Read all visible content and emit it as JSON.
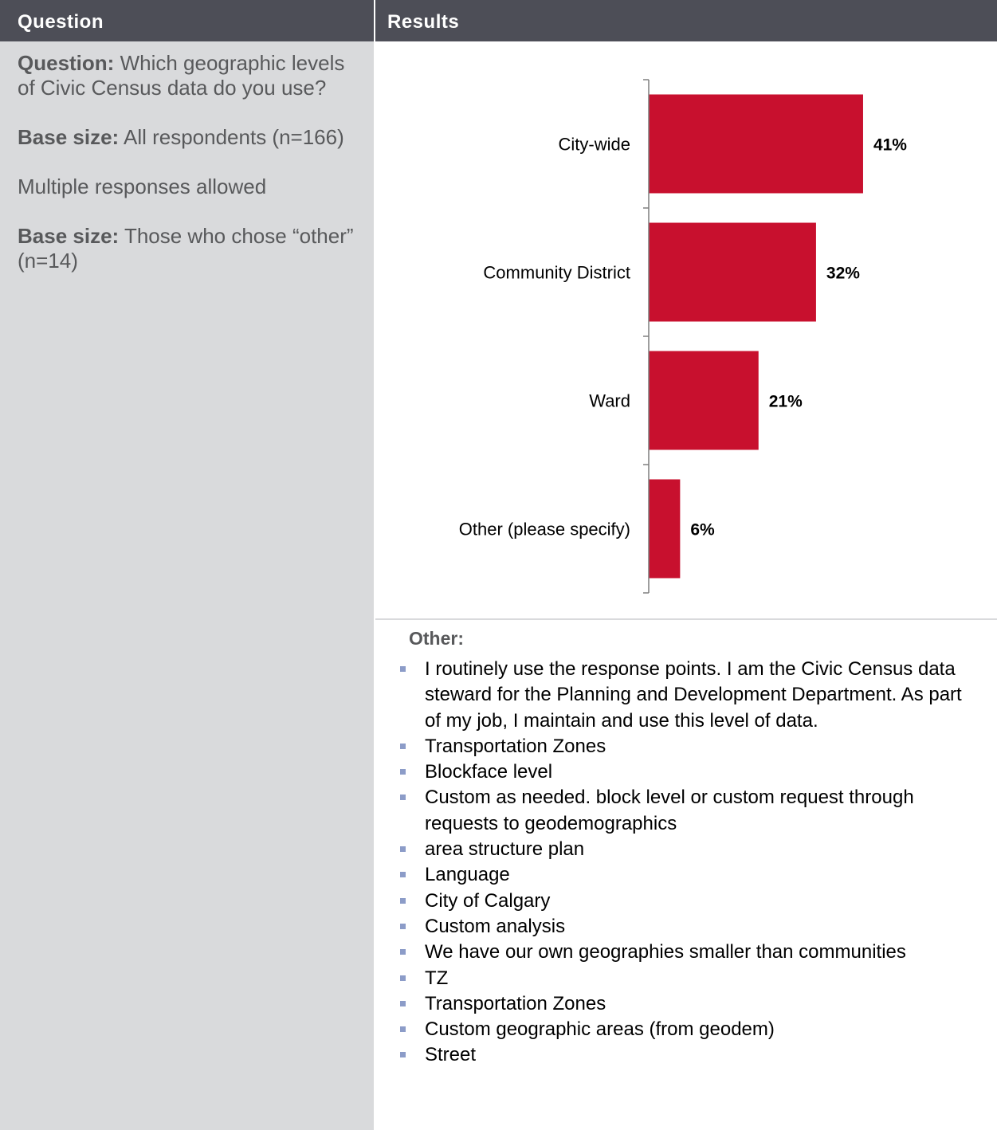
{
  "header": {
    "question_label": "Question",
    "results_label": "Results"
  },
  "left": {
    "question_bold": "Question:",
    "question_text": " Which geographic levels of Civic Census data do you use?",
    "base1_bold": "Base size:",
    "base1_text": " All respondents (n=166)",
    "multiple": "Multiple responses allowed",
    "base2_bold": "Base size:",
    "base2_text": " Those who chose “other” (n=14)"
  },
  "chart_data": {
    "type": "bar",
    "orientation": "horizontal",
    "categories": [
      "City-wide",
      "Community District",
      "Ward",
      "Other (please specify)"
    ],
    "values": [
      41,
      32,
      21,
      6
    ],
    "value_labels": [
      "41%",
      "32%",
      "21%",
      "6%"
    ],
    "unit": "%",
    "bar_color": "#c8102e",
    "xlim": [
      0,
      50
    ]
  },
  "other": {
    "title": "Other:",
    "items": [
      "I routinely use the response points. I am the Civic Census data steward for the Planning and Development Department. As part of my job, I maintain and use this level of data.",
      "Transportation Zones",
      "Blockface level",
      "Custom as needed.  block level or custom request through requests to geodemographics",
      "area structure plan",
      "Language",
      "City of Calgary",
      "Custom analysis",
      "We have our own geographies smaller than communities",
      "TZ",
      "Transportation Zones",
      "Custom geographic areas (from geodem)",
      "Street"
    ]
  },
  "colors": {
    "header_bg": "#4d4e57",
    "left_bg": "#d9dadc",
    "text_gray": "#58595b",
    "bullet": "#8c9cc8"
  }
}
